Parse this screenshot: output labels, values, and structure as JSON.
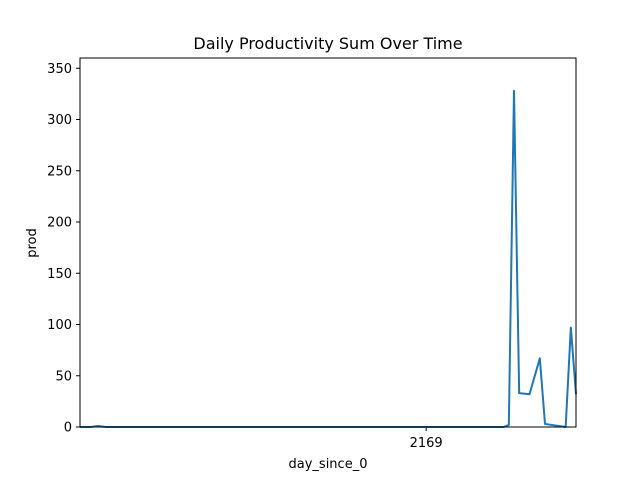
{
  "chart_data": {
    "type": "line",
    "title": "Daily Productivity Sum Over Time",
    "xlabel": "day_since_0",
    "ylabel": "prod",
    "xlim": [
      0,
      96
    ],
    "ylim": [
      0,
      360
    ],
    "x_ticks": [
      {
        "value": 67,
        "label": "2169"
      }
    ],
    "y_ticks": [
      0,
      50,
      100,
      150,
      200,
      250,
      300,
      350
    ],
    "grid": false,
    "legend": "none",
    "series": [
      {
        "color": "#1f77b4",
        "x": [
          0,
          2,
          3.5,
          5,
          10,
          20,
          30,
          40,
          50,
          60,
          67,
          72,
          80,
          82,
          83,
          84,
          85,
          87,
          89,
          90,
          94,
          95,
          96
        ],
        "y": [
          0,
          0,
          1,
          0,
          0,
          0,
          0,
          0,
          0,
          0,
          0,
          0,
          0,
          0,
          2,
          328,
          33,
          32,
          67,
          3,
          0,
          97,
          32
        ]
      }
    ],
    "colors": {
      "line": "#1f77b4",
      "axes": "#000000",
      "background": "#ffffff"
    }
  }
}
